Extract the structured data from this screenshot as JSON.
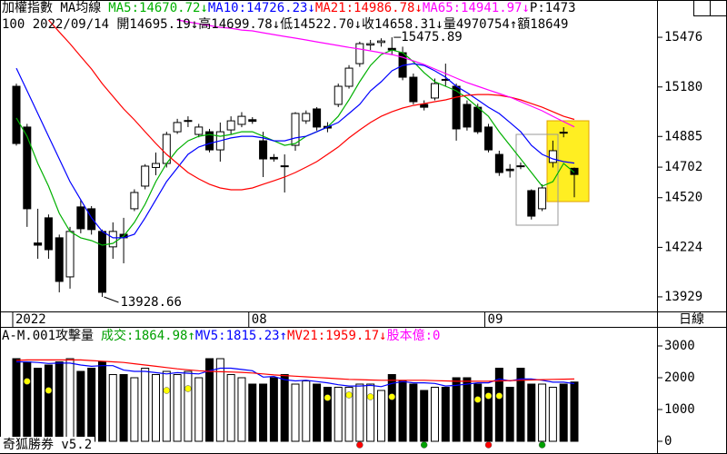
{
  "period": "日線",
  "footer": "奇狐勝券 v5.2",
  "chart_data": [
    {
      "type": "candlestick",
      "title": "加權指數 MA均線",
      "legend_extra": "P:1473",
      "info": "100 2022/09/14 開14695.19↓高14699.78↓低14522.70↓收14658.31↓量4970754↑額18649",
      "categories": [
        "2022",
        null,
        null,
        null,
        null,
        null,
        null,
        null,
        null,
        null,
        null,
        null,
        null,
        null,
        null,
        null,
        null,
        null,
        null,
        null,
        null,
        null,
        "08",
        null,
        null,
        null,
        null,
        null,
        null,
        null,
        null,
        null,
        null,
        null,
        null,
        null,
        null,
        null,
        null,
        null,
        null,
        null,
        null,
        null,
        "09",
        null,
        null,
        null,
        null,
        null,
        null,
        null,
        null
      ],
      "open": [
        15184,
        14941,
        14250,
        14400,
        14281,
        14048,
        14465,
        14454,
        14319,
        14227,
        14302,
        14454,
        14589,
        14700,
        14724,
        14913,
        14975,
        14897,
        14913,
        14805,
        14924,
        14957,
        14985,
        14859,
        14760,
        14710,
        14832,
        14978,
        15049,
        14945,
        15076,
        15184,
        15319,
        15430,
        15445,
        15410,
        15384,
        15238,
        15076,
        15114,
        15225,
        15184,
        15076,
        15059,
        14941,
        14778,
        14690,
        14710,
        14562,
        14454,
        14730,
        14910,
        14695.19
      ],
      "high": [
        15200,
        14960,
        14454,
        14420,
        14300,
        14346,
        14508,
        14470,
        14330,
        14373,
        14400,
        14570,
        14720,
        14789,
        14913,
        14990,
        15005,
        14960,
        14930,
        14968,
        15005,
        15030,
        15000,
        14913,
        14780,
        14778,
        15030,
        15040,
        15060,
        14970,
        15200,
        15310,
        15450,
        15460,
        15470,
        15475.89,
        15420,
        15260,
        15100,
        15230,
        15319,
        15200,
        15100,
        15080,
        14960,
        14800,
        14720,
        14730,
        14570,
        14600,
        14860,
        14940,
        14699.78
      ],
      "low": [
        14830,
        14346,
        14156,
        14156,
        13956,
        13978,
        14308,
        14300,
        13928.66,
        14156,
        14129,
        14440,
        14570,
        14654,
        14700,
        14900,
        14941,
        14880,
        14790,
        14735,
        14900,
        14940,
        14960,
        14643,
        14735,
        14551,
        14800,
        14960,
        14920,
        14910,
        15060,
        15170,
        15300,
        15400,
        15420,
        15370,
        15220,
        15076,
        15040,
        15100,
        15184,
        14860,
        14920,
        14900,
        14790,
        14650,
        14640,
        14690,
        14390,
        14440,
        14700,
        14880,
        14522.7
      ],
      "close": [
        14843,
        14454,
        14237,
        14210,
        14021,
        14319,
        14335,
        14330,
        13956,
        14319,
        14281,
        14551,
        14708,
        14724,
        14897,
        14968,
        14980,
        14941,
        14805,
        14913,
        14978,
        15005,
        14975,
        14751,
        14751,
        14705,
        15022,
        15022,
        14941,
        14935,
        15184,
        15292,
        15438,
        15438,
        15454,
        15400,
        15238,
        15092,
        15059,
        15200,
        15220,
        14930,
        14941,
        14913,
        14805,
        14670,
        14681,
        14705,
        14410,
        14578,
        14800,
        14905,
        14658.31
      ],
      "up_color": "#ffffff",
      "down_color": "#000000",
      "mark_extremes": true,
      "series": [
        {
          "name": "MA5:14670.72↓",
          "color": "#00b000",
          "values": [
            14995,
            14886,
            14724,
            14589,
            14427,
            14319,
            14281,
            14264,
            14237,
            14248,
            14291,
            14373,
            14481,
            14616,
            14724,
            14805,
            14859,
            14886,
            14897,
            14886,
            14897,
            14913,
            14913,
            14886,
            14859,
            14832,
            14843,
            14886,
            14913,
            14941,
            15005,
            15103,
            15211,
            15308,
            15373,
            15400,
            15384,
            15330,
            15265,
            15211,
            15184,
            15157,
            15114,
            15059,
            15005,
            14913,
            14832,
            14751,
            14670,
            14589,
            14616,
            14724,
            14670.72
          ]
        },
        {
          "name": "MA10:14726.23↓",
          "color": "#0000ff",
          "values": [
            15292,
            15157,
            15022,
            14886,
            14751,
            14616,
            14508,
            14400,
            14319,
            14281,
            14281,
            14302,
            14400,
            14508,
            14616,
            14697,
            14778,
            14822,
            14843,
            14859,
            14876,
            14886,
            14886,
            14876,
            14859,
            14859,
            14876,
            14886,
            14913,
            14941,
            14968,
            15022,
            15076,
            15157,
            15211,
            15276,
            15308,
            15319,
            15308,
            15276,
            15238,
            15184,
            15146,
            15103,
            15059,
            15022,
            14968,
            14913,
            14832,
            14778,
            14751,
            14735,
            14726.23
          ]
        },
        {
          "name": "MA21:14986.78↓",
          "color": "#ff0000",
          "values": [
            null,
            null,
            null,
            15579,
            15508,
            15438,
            15362,
            15287,
            15200,
            15124,
            15049,
            14984,
            14913,
            14843,
            14778,
            14724,
            14670,
            14632,
            14600,
            14578,
            14567,
            14567,
            14578,
            14600,
            14621,
            14643,
            14670,
            14702,
            14735,
            14778,
            14822,
            14876,
            14924,
            14968,
            15005,
            15032,
            15054,
            15070,
            15081,
            15092,
            15103,
            15119,
            15130,
            15135,
            15135,
            15130,
            15119,
            15103,
            15081,
            15059,
            15032,
            15005,
            14986.78
          ]
        },
        {
          "name": "MA65:14941.97↓",
          "color": "#ff00ff",
          "values": [
            null,
            null,
            null,
            null,
            null,
            null,
            null,
            null,
            null,
            null,
            null,
            null,
            null,
            null,
            null,
            15579,
            15568,
            15557,
            15546,
            15535,
            15530,
            15519,
            15514,
            15503,
            15492,
            15481,
            15471,
            15460,
            15449,
            15438,
            15427,
            15416,
            15406,
            15395,
            15384,
            15373,
            15357,
            15335,
            15314,
            15287,
            15260,
            15233,
            15206,
            15184,
            15162,
            15141,
            15119,
            15092,
            15065,
            15038,
            15005,
            14973,
            14941.97
          ]
        }
      ],
      "ylim": [
        13842,
        15590
      ],
      "yticks": [
        13929,
        14224,
        14520,
        14702,
        14885,
        15180,
        15476
      ]
    },
    {
      "type": "bar",
      "title": "A-M.001攻擊量",
      "bar_legend": "成交:1864.98↑",
      "bar_legend_color": "#00a000",
      "legend_extra": "股本億:0",
      "legend_extra_color": "#ff00ff",
      "values": [
        2600,
        2500,
        2300,
        2400,
        2500,
        2600,
        2200,
        2300,
        2500,
        2100,
        2100,
        2000,
        2300,
        2100,
        2200,
        2100,
        2200,
        2000,
        2600,
        2600,
        2100,
        2000,
        1800,
        1800,
        2000,
        2100,
        1800,
        1900,
        1800,
        1700,
        1700,
        1700,
        1800,
        1800,
        1600,
        2100,
        1900,
        1800,
        1600,
        1700,
        1700,
        2000,
        2000,
        1800,
        1700,
        2300,
        1700,
        2300,
        1800,
        1800,
        1700,
        1800,
        1864.98
      ],
      "series": [
        {
          "name": "MV5:1815.23↑",
          "color": "#0000ff",
          "values": [
            2500,
            2500,
            2480,
            2450,
            2460,
            2460,
            2400,
            2360,
            2380,
            2380,
            2240,
            2200,
            2200,
            2160,
            2120,
            2160,
            2140,
            2120,
            2220,
            2300,
            2300,
            2260,
            2220,
            2020,
            2040,
            1940,
            1900,
            1920,
            1880,
            1840,
            1780,
            1740,
            1740,
            1760,
            1720,
            1820,
            1880,
            1840,
            1840,
            1820,
            1740,
            1760,
            1800,
            1840,
            1840,
            1960,
            1900,
            1960,
            1960,
            1920,
            1860,
            1860,
            1815.23
          ]
        },
        {
          "name": "MV21:1959.17↓",
          "color": "#ff0000",
          "values": [
            2550,
            2560,
            2560,
            2560,
            2560,
            2560,
            2560,
            2540,
            2520,
            2500,
            2480,
            2440,
            2400,
            2360,
            2320,
            2280,
            2250,
            2220,
            2200,
            2190,
            2180,
            2170,
            2150,
            2120,
            2090,
            2070,
            2050,
            2030,
            2010,
            1990,
            1970,
            1950,
            1940,
            1930,
            1920,
            1920,
            1920,
            1920,
            1920,
            1910,
            1900,
            1890,
            1890,
            1890,
            1890,
            1900,
            1910,
            1920,
            1930,
            1940,
            1950,
            1955,
            1959.17
          ]
        }
      ],
      "dots": [
        {
          "color": "#ffff00",
          "values": [
            null,
            1886,
            null,
            1600,
            null,
            null,
            null,
            null,
            null,
            null,
            null,
            null,
            null,
            null,
            1600,
            null,
            1657,
            null,
            null,
            null,
            null,
            null,
            null,
            null,
            null,
            null,
            null,
            null,
            null,
            1371,
            null,
            1457,
            null,
            1400,
            null,
            1400,
            null,
            null,
            null,
            null,
            null,
            null,
            null,
            1314,
            1429,
            1429,
            null,
            null,
            null,
            null,
            null,
            null,
            null
          ]
        },
        {
          "color": "#ff0000",
          "values": [
            null,
            null,
            null,
            null,
            null,
            null,
            null,
            null,
            null,
            null,
            null,
            null,
            null,
            null,
            null,
            null,
            null,
            null,
            null,
            null,
            null,
            null,
            null,
            null,
            null,
            null,
            null,
            null,
            null,
            null,
            null,
            null,
            -114,
            null,
            null,
            null,
            null,
            null,
            null,
            null,
            null,
            null,
            null,
            null,
            -114,
            null,
            null,
            null,
            null,
            null,
            null,
            null,
            null
          ]
        },
        {
          "color": "#00a000",
          "values": [
            null,
            null,
            null,
            null,
            null,
            null,
            null,
            null,
            null,
            null,
            null,
            null,
            null,
            null,
            null,
            null,
            null,
            null,
            null,
            null,
            null,
            null,
            null,
            null,
            null,
            null,
            null,
            null,
            null,
            null,
            null,
            null,
            null,
            null,
            null,
            null,
            null,
            null,
            -114,
            null,
            null,
            null,
            null,
            null,
            null,
            null,
            null,
            null,
            null,
            -114,
            null,
            null,
            null
          ]
        }
      ],
      "ylim": [
        -314,
        3086
      ],
      "yticks": [
        0,
        1000,
        2000,
        3000
      ]
    }
  ]
}
